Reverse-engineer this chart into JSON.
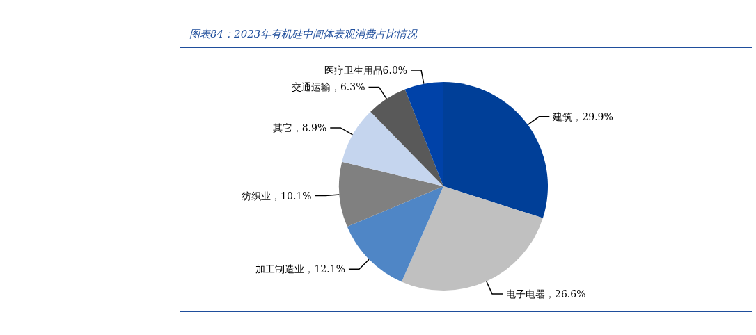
{
  "chart_data": {
    "type": "pie",
    "title": "图表84：2023年有机硅中间体表观消费占比情况",
    "categories": [
      "建筑",
      "电子电器",
      "加工制造业",
      "纺织业",
      "其它",
      "交通运输",
      "医疗卫生用品"
    ],
    "values": [
      29.9,
      26.6,
      12.1,
      10.1,
      8.9,
      6.3,
      6.0
    ],
    "colors": [
      "#003f98",
      "#c0c0c0",
      "#4f86c6",
      "#808080",
      "#c5d5ee",
      "#595959",
      "#0042a8"
    ],
    "value_labels": [
      "，29.9%",
      "，26.6%",
      "，12.1%",
      "，10.1%",
      "，8.9%",
      "，6.3%",
      "6.0%"
    ]
  }
}
